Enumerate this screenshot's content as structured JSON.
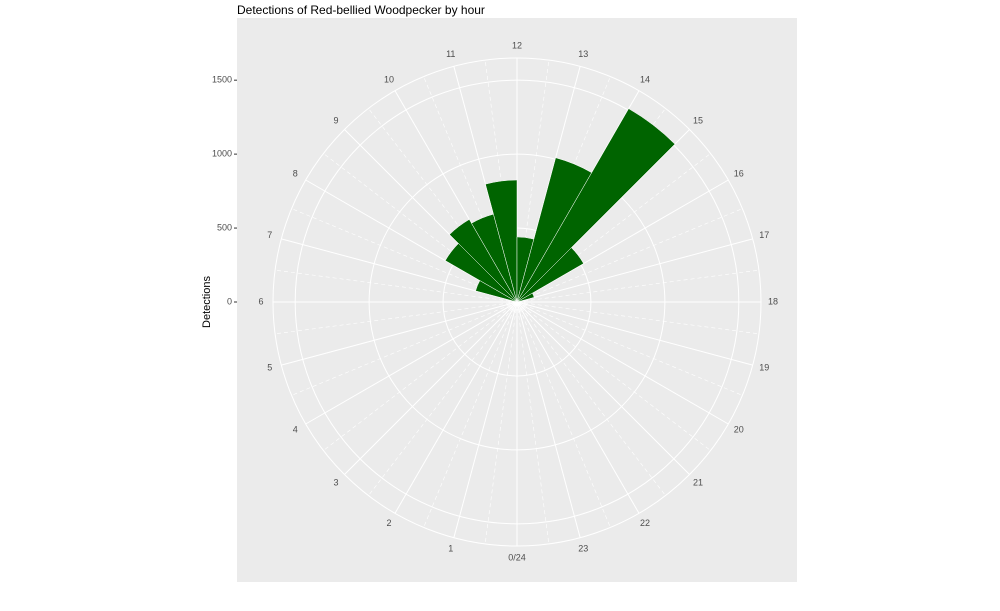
{
  "chart_data": {
    "type": "polar-bar",
    "title": "Detections of Red-bellied Woodpecker by hour",
    "y_label": "Detections",
    "categories": [
      "0/24",
      "1",
      "2",
      "3",
      "4",
      "5",
      "6",
      "7",
      "8",
      "9",
      "10",
      "11",
      "12",
      "13",
      "14",
      "15",
      "16",
      "17",
      "18",
      "19",
      "20",
      "21",
      "22",
      "23"
    ],
    "values": [
      0,
      0,
      0,
      0,
      0,
      0,
      0,
      290,
      560,
      645,
      615,
      825,
      440,
      1010,
      1510,
      520,
      120,
      0,
      0,
      0,
      0,
      0,
      0,
      0
    ],
    "color": "#006400",
    "ylim": [
      0,
      1650
    ],
    "yticks": [
      0,
      500,
      1000,
      1500
    ],
    "grid": true
  }
}
